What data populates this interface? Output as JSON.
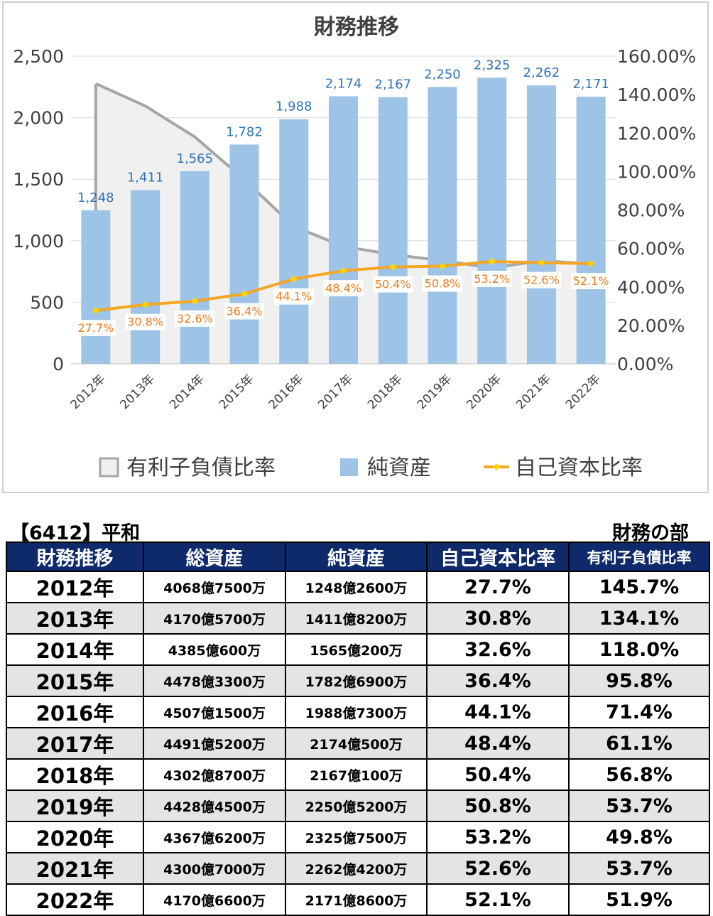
{
  "chart_data": {
    "type": "bar+line+area",
    "title": "財務推移",
    "categories": [
      "2012年",
      "2013年",
      "2014年",
      "2015年",
      "2016年",
      "2017年",
      "2018年",
      "2019年",
      "2020年",
      "2021年",
      "2022年"
    ],
    "series": [
      {
        "name": "有利子負債比率",
        "kind": "area",
        "axis": "right",
        "values": [
          145.7,
          134.1,
          118.0,
          95.8,
          71.4,
          61.1,
          56.8,
          53.7,
          49.8,
          53.7,
          51.9
        ]
      },
      {
        "name": "純資産",
        "kind": "bar",
        "axis": "left",
        "values": [
          1248,
          1411,
          1565,
          1782,
          1988,
          2174,
          2167,
          2250,
          2325,
          2262,
          2171
        ],
        "labels": [
          "1,248",
          "1,411",
          "1,565",
          "1,782",
          "1,988",
          "2,174",
          "2,167",
          "2,250",
          "2,325",
          "2,262",
          "2,171"
        ]
      },
      {
        "name": "自己資本比率",
        "kind": "line",
        "axis": "right",
        "values": [
          27.7,
          30.8,
          32.6,
          36.4,
          44.1,
          48.4,
          50.4,
          50.8,
          53.2,
          52.6,
          52.1
        ],
        "labels": [
          "27.7%",
          "30.8%",
          "32.6%",
          "36.4%",
          "44.1%",
          "48.4%",
          "50.4%",
          "50.8%",
          "53.2%",
          "52.6%",
          "52.1%"
        ]
      }
    ],
    "left_axis": {
      "ticks": [
        "0",
        "500",
        "1,000",
        "1,500",
        "2,000",
        "2,500"
      ],
      "ylim": [
        0,
        2500
      ]
    },
    "right_axis": {
      "ticks": [
        "0.00%",
        "20.00%",
        "40.00%",
        "60.00%",
        "80.00%",
        "100.00%",
        "120.00%",
        "140.00%",
        "160.00%"
      ],
      "ylim": [
        0,
        160
      ]
    },
    "legend_position": "bottom",
    "grid": true,
    "colors": {
      "area_fill": "#f0f0f0",
      "area_line": "#a6a6a6",
      "bar": "#9dc3e6",
      "line": "#f5a623",
      "marker": "#ffd400",
      "bar_label": "#2e75b6",
      "line_label": "#f07d1a"
    }
  },
  "table": {
    "company": "【6412】平和",
    "section": "財務の部",
    "headers": [
      "財務推移",
      "総資産",
      "純資産",
      "自己資本比率",
      "有利子負債比率"
    ],
    "rows": [
      [
        "2012年",
        "4068億7500万",
        "1248億2600万",
        "27.7%",
        "145.7%"
      ],
      [
        "2013年",
        "4170億5700万",
        "1411億8200万",
        "30.8%",
        "134.1%"
      ],
      [
        "2014年",
        "4385億600万",
        "1565億200万",
        "32.6%",
        "118.0%"
      ],
      [
        "2015年",
        "4478億3300万",
        "1782億6900万",
        "36.4%",
        "95.8%"
      ],
      [
        "2016年",
        "4507億1500万",
        "1988億7300万",
        "44.1%",
        "71.4%"
      ],
      [
        "2017年",
        "4491億5200万",
        "2174億500万",
        "48.4%",
        "61.1%"
      ],
      [
        "2018年",
        "4302億8700万",
        "2167億100万",
        "50.4%",
        "56.8%"
      ],
      [
        "2019年",
        "4428億4500万",
        "2250億5200万",
        "50.8%",
        "53.7%"
      ],
      [
        "2020年",
        "4367億6200万",
        "2325億7500万",
        "53.2%",
        "49.8%"
      ],
      [
        "2021年",
        "4300億7000万",
        "2262億4200万",
        "52.6%",
        "53.7%"
      ],
      [
        "2022年",
        "4170億6600万",
        "2171億8600万",
        "52.1%",
        "51.9%"
      ]
    ]
  }
}
